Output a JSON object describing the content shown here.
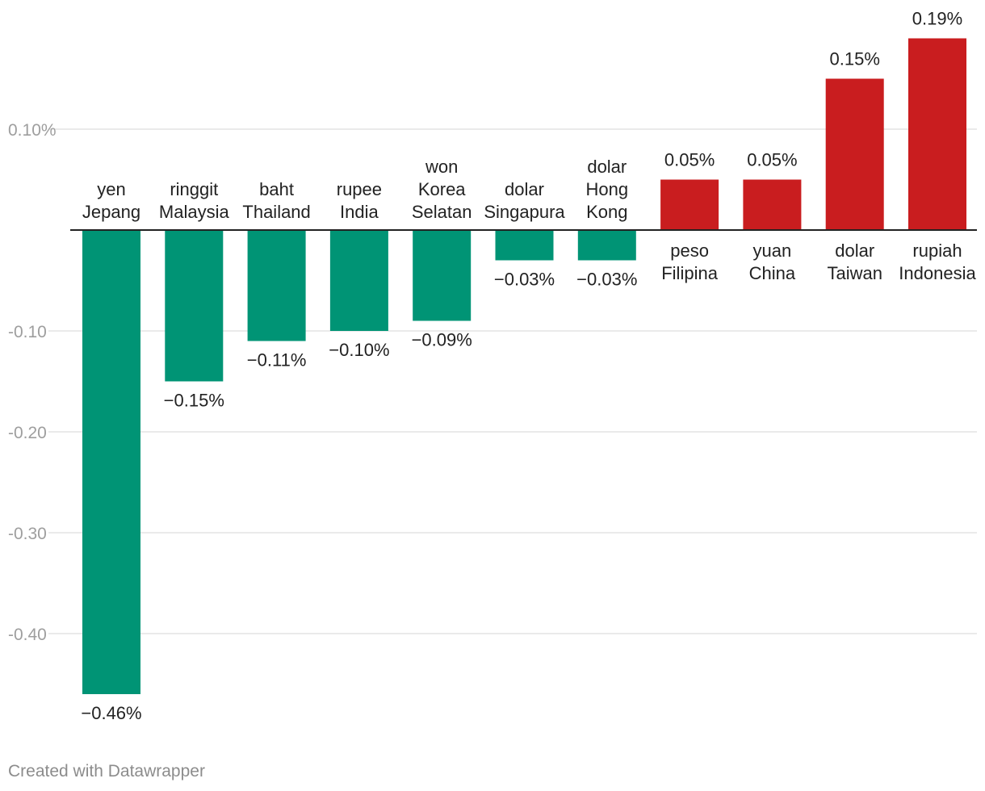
{
  "chart_data": {
    "type": "bar",
    "title": "",
    "xlabel": "",
    "ylabel": "",
    "ylim": [
      -0.49,
      0.2
    ],
    "grid": true,
    "y_ticks": [
      {
        "value": 0.1,
        "label": "0.10%"
      },
      {
        "value": -0.1,
        "label": "-0.10"
      },
      {
        "value": -0.2,
        "label": "-0.20"
      },
      {
        "value": -0.3,
        "label": "-0.30"
      },
      {
        "value": -0.4,
        "label": "-0.40"
      }
    ],
    "categories": [
      [
        "yen",
        "Jepang"
      ],
      [
        "ringgit",
        "Malaysia"
      ],
      [
        "baht",
        "Thailand"
      ],
      [
        "rupee",
        "India"
      ],
      [
        "won",
        "Korea",
        "Selatan"
      ],
      [
        "dolar",
        "Singapura"
      ],
      [
        "dolar",
        "Hong",
        "Kong"
      ],
      [
        "peso",
        "Filipina"
      ],
      [
        "yuan",
        "China"
      ],
      [
        "dolar",
        "Taiwan"
      ],
      [
        "rupiah",
        "Indonesia"
      ]
    ],
    "values": [
      -0.46,
      -0.15,
      -0.11,
      -0.1,
      -0.09,
      -0.03,
      -0.03,
      0.05,
      0.05,
      0.15,
      0.19
    ],
    "value_labels": [
      "−0.46%",
      "−0.15%",
      "−0.11%",
      "−0.10%",
      "−0.09%",
      "−0.03%",
      "−0.03%",
      "0.05%",
      "0.05%",
      "0.15%",
      "0.19%"
    ],
    "colors": {
      "negative": "#009475",
      "positive": "#c91d1f",
      "grid": "#e3e3e3",
      "axis": "#222222",
      "tick": "#9e9e9e",
      "text": "#222222"
    }
  },
  "footer": {
    "credit": "Created with Datawrapper"
  }
}
